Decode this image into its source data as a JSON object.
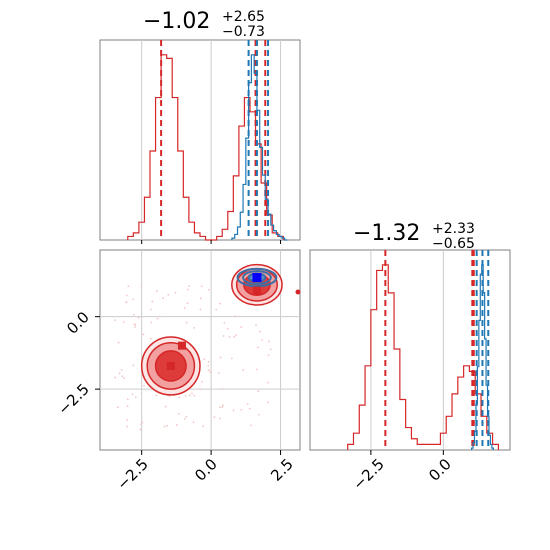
{
  "chart_data": {
    "type": "corner",
    "parameters": [
      {
        "title_value": "−1.02",
        "title_plus": "+2.65",
        "title_minus": "−0.73",
        "range": [
          -4.0,
          3.2
        ],
        "ticks": [
          -2.5,
          0.0,
          2.5
        ],
        "tick_labels": [
          "−2.5",
          "0.0",
          "2.5"
        ]
      },
      {
        "title_value": "−1.32",
        "title_plus": "+2.33",
        "title_minus": "−0.65",
        "range": [
          -4.6,
          2.3
        ],
        "ticks": [
          -2.5,
          0.0
        ],
        "tick_labels": [
          "−2.5",
          "0.0"
        ]
      }
    ],
    "series": [
      {
        "color": "#d62728",
        "p1_hist": {
          "x": [
            -2.9,
            -2.7,
            -2.5,
            -2.3,
            -2.1,
            -1.9,
            -1.7,
            -1.5,
            -1.3,
            -1.1,
            -0.9,
            -0.7,
            -0.5,
            -0.3,
            -0.1,
            0.1,
            0.3,
            0.5,
            0.7,
            0.9,
            1.1,
            1.3,
            1.5,
            1.7,
            1.9,
            2.1,
            2.3,
            2.5
          ],
          "y": [
            0.01,
            0.02,
            0.05,
            0.12,
            0.25,
            0.4,
            0.52,
            0.51,
            0.4,
            0.25,
            0.12,
            0.05,
            0.02,
            0.01,
            0.0,
            0.0,
            0.01,
            0.03,
            0.08,
            0.18,
            0.32,
            0.4,
            0.36,
            0.27,
            0.16,
            0.07,
            0.02,
            0.01
          ]
        },
        "p1_quantiles": [
          -1.8,
          1.6,
          1.95
        ],
        "p2_hist": {
          "x": [
            -3.2,
            -3.0,
            -2.8,
            -2.6,
            -2.4,
            -2.2,
            -2.0,
            -1.8,
            -1.6,
            -1.4,
            -1.2,
            -1.0,
            -0.8,
            -0.6,
            -0.4,
            -0.2,
            0.0,
            0.2,
            0.4,
            0.6,
            0.8,
            1.0,
            1.2,
            1.4,
            1.6,
            1.8
          ],
          "y": [
            0.01,
            0.03,
            0.08,
            0.15,
            0.25,
            0.32,
            0.33,
            0.28,
            0.18,
            0.09,
            0.04,
            0.02,
            0.01,
            0.01,
            0.01,
            0.01,
            0.03,
            0.06,
            0.1,
            0.13,
            0.15,
            0.14,
            0.1,
            0.06,
            0.03,
            0.01
          ]
        },
        "p2_quantiles": [
          -2.0,
          1.0,
          1.05
        ],
        "contour_modes": [
          {
            "center": [
              -1.45,
              -1.7
            ],
            "peak_marker": [
              -1.45,
              -1.7
            ],
            "extra_marker": [
              -1.05,
              -1.0
            ]
          },
          {
            "center": [
              1.65,
              1.1
            ],
            "peak_marker": [
              1.65,
              0.9
            ]
          }
        ]
      },
      {
        "color": "#1f77b4",
        "p1_hist": {
          "x": [
            0.8,
            0.9,
            1.0,
            1.1,
            1.2,
            1.3,
            1.4,
            1.5,
            1.6,
            1.7,
            1.8,
            1.9,
            2.0,
            2.1,
            2.2,
            2.3,
            2.4,
            2.5,
            2.6,
            2.7
          ],
          "y": [
            0.01,
            0.03,
            0.07,
            0.15,
            0.3,
            0.55,
            0.85,
            1.0,
            0.9,
            0.7,
            0.5,
            0.35,
            0.22,
            0.14,
            0.08,
            0.05,
            0.03,
            0.02,
            0.01,
            0.0
          ]
        },
        "p1_quantiles": [
          1.35,
          1.65,
          2.05
        ],
        "p2_hist": {
          "x": [
            1.0,
            1.05,
            1.1,
            1.15,
            1.2,
            1.25,
            1.3,
            1.35,
            1.4,
            1.45,
            1.5,
            1.55,
            1.6,
            1.65,
            1.7
          ],
          "y": [
            0.01,
            0.04,
            0.1,
            0.25,
            0.45,
            0.7,
            0.95,
            1.0,
            0.85,
            0.6,
            0.35,
            0.18,
            0.08,
            0.03,
            0.01
          ]
        },
        "p2_quantiles": [
          1.15,
          1.35,
          1.55
        ],
        "contour_modes": [
          {
            "center": [
              1.65,
              1.35
            ],
            "peak_marker": [
              1.65,
              1.35
            ]
          }
        ]
      }
    ],
    "grid": true
  }
}
